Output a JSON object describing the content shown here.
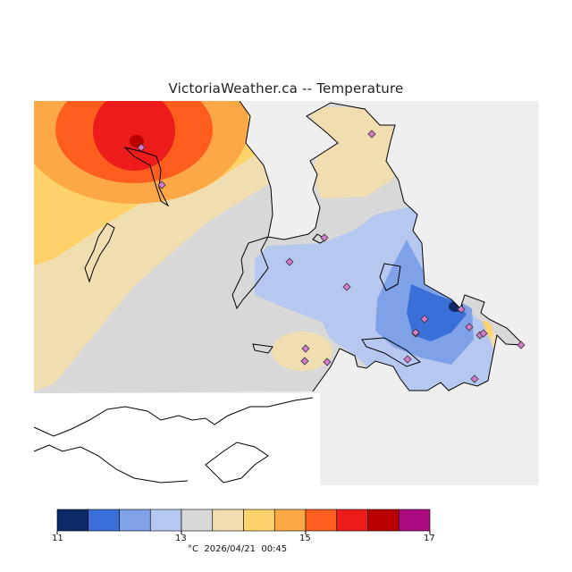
{
  "title": "VictoriaWeather.ca -- Temperature",
  "legend": {
    "colors": [
      "#0d2a66",
      "#3a6fd8",
      "#7fa1e8",
      "#b7c8f0",
      "#d8d8d8",
      "#f0ddb0",
      "#fdd26a",
      "#fca847",
      "#fd5e1d",
      "#ec1c1c",
      "#b80000",
      "#ab0a80"
    ],
    "ticks": [
      {
        "label": "11",
        "value": 11
      },
      {
        "label": "13",
        "value": 13
      },
      {
        "label": "15",
        "value": 15
      },
      {
        "label": "17",
        "value": 17
      }
    ],
    "min": 11,
    "max": 17,
    "step": 0.5
  },
  "footer": {
    "unit": "°C",
    "timestamp": "2026/04/21  00:45"
  },
  "station_icon": "diamond-marker-icon",
  "station_count": 19
}
